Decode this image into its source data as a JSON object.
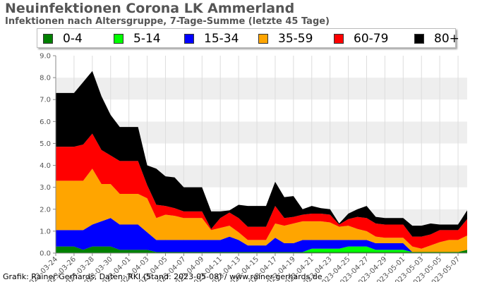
{
  "chart_data": {
    "type": "area",
    "stacked": true,
    "title": "Neuinfektionen Corona LK Ammerland",
    "subtitle": "Infektionen nach Altersgruppe, 7-Tage-Summe (letzte 45 Tage)",
    "xlabel": "",
    "ylabel": "",
    "ylim": [
      0,
      9
    ],
    "y_ticks": [
      "0.0",
      "1.0",
      "2.0",
      "3.0",
      "4.0",
      "5.0",
      "6.0",
      "7.0",
      "8.0",
      "9.0"
    ],
    "grid": "horizontal bands",
    "legend_position": "top",
    "x": [
      "2023-03-24",
      "2023-03-25",
      "2023-03-26",
      "2023-03-27",
      "2023-03-28",
      "2023-03-29",
      "2023-03-30",
      "2023-03-31",
      "2023-04-01",
      "2023-04-02",
      "2023-04-03",
      "2023-04-04",
      "2023-04-05",
      "2023-04-06",
      "2023-04-07",
      "2023-04-08",
      "2023-04-09",
      "2023-04-10",
      "2023-04-11",
      "2023-04-12",
      "2023-04-13",
      "2023-04-14",
      "2023-04-15",
      "2023-04-16",
      "2023-04-17",
      "2023-04-18",
      "2023-04-19",
      "2023-04-20",
      "2023-04-21",
      "2023-04-22",
      "2023-04-23",
      "2023-04-24",
      "2023-04-25",
      "2023-04-26",
      "2023-04-27",
      "2023-04-28",
      "2023-04-29",
      "2023-04-30",
      "2023-05-01",
      "2023-05-02",
      "2023-05-03",
      "2023-05-04",
      "2023-05-05",
      "2023-05-06",
      "2023-05-07",
      "2023-05-08"
    ],
    "x_tick_labels": [
      "2023-03-24",
      "2023-03-26",
      "2023-03-28",
      "2023-03-30",
      "2023-04-01",
      "2023-04-03",
      "2023-04-05",
      "2023-04-07",
      "2023-04-09",
      "2023-04-11",
      "2023-04-13",
      "2023-04-15",
      "2023-04-17",
      "2023-04-19",
      "2023-04-21",
      "2023-04-23",
      "2023-04-25",
      "2023-04-27",
      "2023-04-29",
      "2023-05-01",
      "2023-05-03",
      "2023-05-05",
      "2023-05-07"
    ],
    "series": [
      {
        "name": "0-4",
        "color": "#008000",
        "values": [
          0.3,
          0.3,
          0.3,
          0.15,
          0.3,
          0.3,
          0.3,
          0.15,
          0.15,
          0.15,
          0.15,
          0.05,
          0.05,
          0.05,
          0.05,
          0.05,
          0.05,
          0.05,
          0.05,
          0.05,
          0.05,
          0.05,
          0.05,
          0.05,
          0.05,
          0.05,
          0.05,
          0.05,
          0.05,
          0.05,
          0.05,
          0.05,
          0.05,
          0.05,
          0.05,
          0.05,
          0.05,
          0.05,
          0.05,
          0.05,
          0.05,
          0.05,
          0.05,
          0.05,
          0.05,
          0.15
        ]
      },
      {
        "name": "5-14",
        "color": "#00ff00",
        "values": [
          0,
          0,
          0,
          0,
          0,
          0,
          0,
          0,
          0,
          0,
          0,
          0,
          0,
          0,
          0,
          0,
          0,
          0,
          0,
          0,
          0,
          0,
          0,
          0,
          0,
          0,
          0,
          0,
          0.15,
          0.15,
          0.15,
          0.15,
          0.25,
          0.25,
          0.25,
          0.1,
          0.1,
          0.1,
          0.1,
          0,
          0,
          0,
          0,
          0,
          0,
          0
        ]
      },
      {
        "name": "15-34",
        "color": "#0000ff",
        "values": [
          0.75,
          0.75,
          0.75,
          0.9,
          1.0,
          1.15,
          1.3,
          1.15,
          1.15,
          1.15,
          0.8,
          0.55,
          0.55,
          0.55,
          0.55,
          0.55,
          0.55,
          0.55,
          0.55,
          0.7,
          0.55,
          0.3,
          0.3,
          0.3,
          0.65,
          0.4,
          0.4,
          0.55,
          0.4,
          0.4,
          0.4,
          0.4,
          0.3,
          0.3,
          0.3,
          0.3,
          0.3,
          0.3,
          0.3,
          0,
          0,
          0,
          0,
          0,
          0,
          0
        ]
      },
      {
        "name": "35-59",
        "color": "#ffa500",
        "values": [
          2.25,
          2.25,
          2.25,
          2.25,
          2.55,
          1.7,
          1.55,
          1.4,
          1.4,
          1.4,
          1.55,
          1.0,
          1.15,
          1.1,
          1.0,
          1.0,
          1.0,
          0.45,
          0.55,
          0.5,
          0.35,
          0.25,
          0.25,
          0.25,
          0.65,
          0.8,
          0.9,
          0.85,
          0.85,
          0.85,
          0.8,
          0.6,
          0.65,
          0.5,
          0.4,
          0.3,
          0.25,
          0.25,
          0.25,
          0.25,
          0.15,
          0.3,
          0.45,
          0.55,
          0.55,
          0.65
        ]
      },
      {
        "name": "60-79",
        "color": "#ff0000",
        "values": [
          1.55,
          1.55,
          1.55,
          1.65,
          1.6,
          1.55,
          1.3,
          1.5,
          1.5,
          1.5,
          0.6,
          0.6,
          0.4,
          0.35,
          0.3,
          0.3,
          0.3,
          0.05,
          0.45,
          0.6,
          0.65,
          0.6,
          0.6,
          0.6,
          0.8,
          0.35,
          0.3,
          0.3,
          0.35,
          0.35,
          0.35,
          0.1,
          0.3,
          0.55,
          0.6,
          0.6,
          0.6,
          0.6,
          0.6,
          0.45,
          0.55,
          0.5,
          0.55,
          0.45,
          0.45,
          0.75
        ]
      },
      {
        "name": "80+",
        "color": "#000000",
        "values": [
          2.45,
          2.45,
          2.45,
          2.85,
          2.85,
          2.45,
          1.85,
          1.55,
          1.55,
          1.55,
          0.9,
          1.65,
          1.35,
          1.4,
          1.1,
          1.1,
          1.1,
          0.8,
          0.3,
          0.1,
          0.6,
          0.95,
          0.95,
          0.95,
          1.1,
          0.95,
          0.95,
          0.25,
          0.35,
          0.25,
          0.25,
          0.05,
          0.25,
          0.35,
          0.55,
          0.3,
          0.3,
          0.3,
          0.3,
          0.5,
          0.5,
          0.5,
          0.25,
          0.25,
          0.25,
          0.4
        ]
      }
    ]
  },
  "legend": {
    "items": [
      {
        "label": "0-4",
        "color": "#008000"
      },
      {
        "label": "5-14",
        "color": "#00ff00"
      },
      {
        "label": "15-34",
        "color": "#0000ff"
      },
      {
        "label": "35-59",
        "color": "#ffa500"
      },
      {
        "label": "60-79",
        "color": "#ff0000"
      },
      {
        "label": "80+",
        "color": "#000000"
      }
    ]
  },
  "credit": "Grafik: Rainer Gerhards, Daten: RKI (Stand: 2023-05-08) / www.rainer-gerhards.de"
}
